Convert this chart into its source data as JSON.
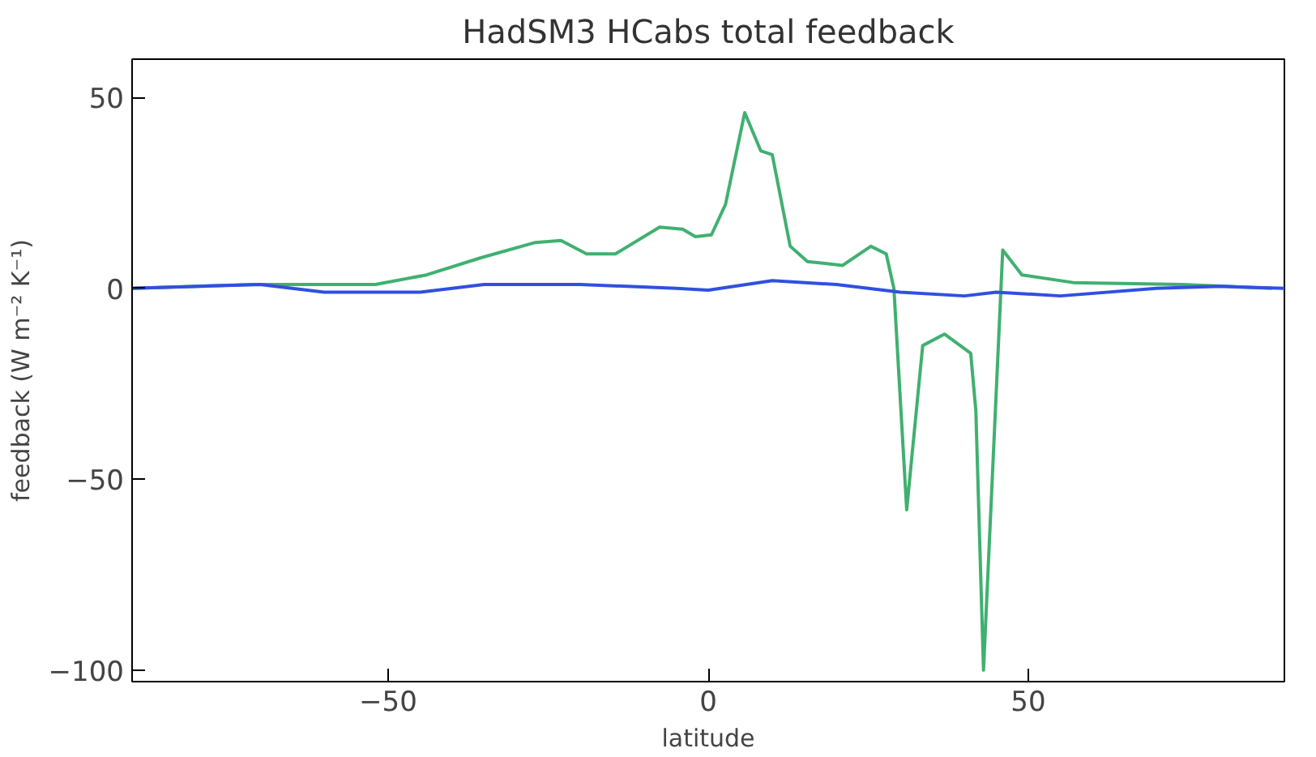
{
  "chart_data": {
    "type": "line",
    "title": "HadSM3 HCabs total feedback",
    "xlabel": "latitude",
    "ylabel": "feedback (W m⁻² K⁻¹)",
    "xlim": [
      -90,
      90
    ],
    "xticks": [
      -50,
      0,
      50
    ],
    "ylim": [
      -103,
      60
    ],
    "yticks": [
      -100,
      -50,
      0,
      50
    ],
    "grid": false,
    "series": [
      {
        "color": "#40b070",
        "x": [
          -90,
          -71,
          -52,
          -44,
          -35.5,
          -27,
          -23,
          -19,
          -14.5,
          -7.6,
          -4,
          -2,
          0.5,
          2.7,
          5.7,
          8.2,
          10,
          12.8,
          15.5,
          21,
          25.4,
          27.8,
          29,
          31,
          33.5,
          36.9,
          41,
          41.8,
          43,
          46,
          49,
          57,
          74,
          88
        ],
        "values": [
          0,
          1,
          1,
          3.5,
          8,
          12,
          12.5,
          9,
          9,
          16,
          15.5,
          13.5,
          14,
          22,
          46,
          36,
          35,
          11,
          7,
          6,
          11,
          9,
          0,
          -58,
          -15,
          -12,
          -17,
          -32,
          -100,
          10,
          3.5,
          1.5,
          1,
          0
        ]
      },
      {
        "color": "#3050e0",
        "x": [
          -90,
          -70,
          -60,
          -45,
          -35,
          -20,
          -5,
          0,
          10,
          20,
          30,
          40,
          45,
          55,
          70,
          80,
          90
        ],
        "values": [
          0,
          1,
          -1,
          -1,
          1,
          1,
          0,
          -0.5,
          2,
          1,
          -1,
          -2,
          -1,
          -2,
          0,
          0.5,
          0
        ]
      }
    ]
  }
}
